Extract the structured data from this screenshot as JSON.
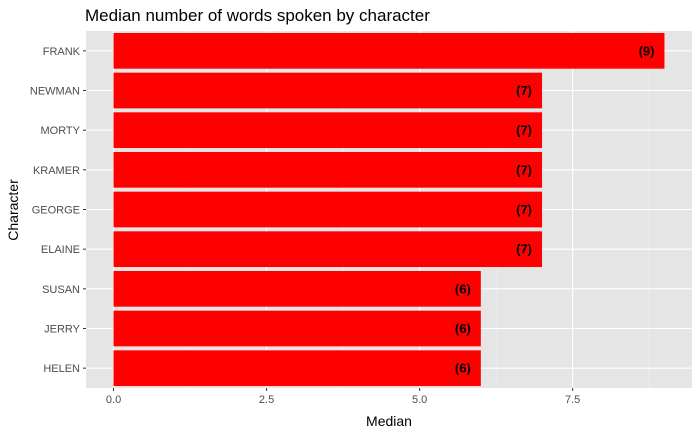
{
  "chart_data": {
    "type": "bar",
    "orientation": "horizontal",
    "title": "Median number of words spoken by character",
    "xlabel": "Median",
    "ylabel": "Character",
    "categories": [
      "FRANK",
      "NEWMAN",
      "MORTY",
      "KRAMER",
      "GEORGE",
      "ELAINE",
      "SUSAN",
      "JERRY",
      "HELEN"
    ],
    "values": [
      9,
      7,
      7,
      7,
      7,
      7,
      6,
      6,
      6
    ],
    "data_labels": [
      "(9)",
      "(7)",
      "(7)",
      "(7)",
      "(7)",
      "(7)",
      "(6)",
      "(6)",
      "(6)"
    ],
    "x_ticks": [
      0,
      2.5,
      5,
      7.5
    ],
    "x_tick_labels": [
      "0.0",
      "2.5",
      "5.0",
      "7.5"
    ],
    "xlim": [
      -0.45,
      9.45
    ],
    "grid": true,
    "legend": "none",
    "colors": {
      "bar": "#ff0000",
      "panel_background": "#e5e5e5",
      "grid_major": "#ffffff",
      "grid_minor": "#f2f2f2"
    }
  }
}
